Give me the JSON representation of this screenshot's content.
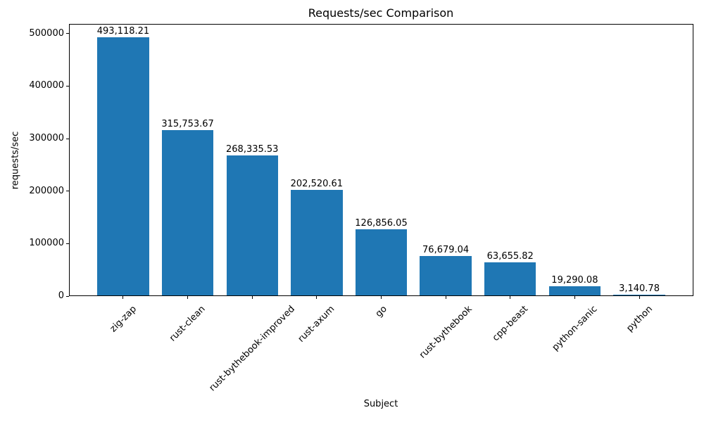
{
  "chart_data": {
    "type": "bar",
    "title": "Requests/sec Comparison",
    "xlabel": "Subject",
    "ylabel": "requests/sec",
    "categories": [
      "zig-zap",
      "rust-clean",
      "rust-bythebook-improved",
      "rust-axum",
      "go",
      "rust-bythebook",
      "cpp-beast",
      "python-sanic",
      "python"
    ],
    "values": [
      493118.21,
      315753.67,
      268335.53,
      202520.61,
      126856.05,
      76679.04,
      63655.82,
      19290.08,
      3140.78
    ],
    "value_labels": [
      "493,118.21",
      "315,753.67",
      "268,335.53",
      "202,520.61",
      "126,856.05",
      "76,679.04",
      "63,655.82",
      "19,290.08",
      "3,140.78"
    ],
    "ytick_values": [
      0,
      100000,
      200000,
      300000,
      400000,
      500000
    ],
    "ytick_labels": [
      "0",
      "100000",
      "200000",
      "300000",
      "400000",
      "500000"
    ],
    "ylim": [
      0,
      517774
    ],
    "bar_color": "#1f77b4",
    "grid": false,
    "legend_position": "none",
    "x_tick_rotation_deg": 45
  }
}
